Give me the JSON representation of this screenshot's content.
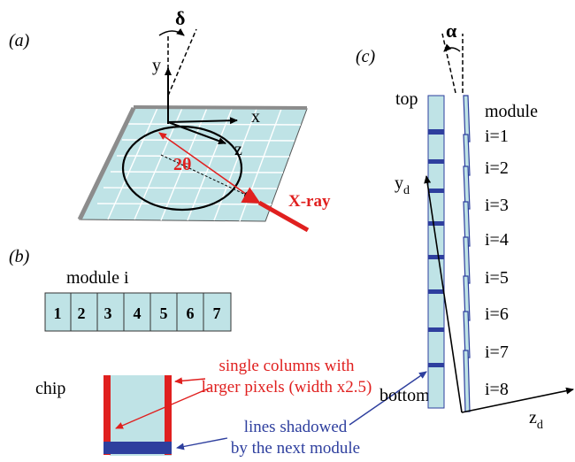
{
  "panel_a": {
    "label": "(a)",
    "delta": "δ",
    "axis_x": "x",
    "axis_y": "y",
    "axis_z": "z",
    "two_theta": "2θ",
    "xray": "X-ray"
  },
  "panel_b": {
    "label": "(b)",
    "module_label": "module i",
    "chips": [
      "1",
      "2",
      "3",
      "4",
      "5",
      "6",
      "7"
    ],
    "chip_label": "chip",
    "red_note_line1": "single columns with",
    "red_note_line2": "larger pixels (width x2.5)",
    "blue_note_line1": "lines shadowed",
    "blue_note_line2": "by the next module"
  },
  "panel_c": {
    "label": "(c)",
    "alpha": "α",
    "top": "top",
    "bottom": "bottom",
    "module": "module",
    "modules": [
      "i=1",
      "i=2",
      "i=3",
      "i=4",
      "i=5",
      "i=6",
      "i=7",
      "i=8"
    ],
    "yd_main": "y",
    "yd_sub": "d",
    "zd_main": "z",
    "zd_sub": "d"
  },
  "colors": {
    "cell_fill": "#bfe3e6",
    "red": "#e0201f",
    "blue": "#2e3f9e",
    "grey": "#8c8c8c"
  }
}
